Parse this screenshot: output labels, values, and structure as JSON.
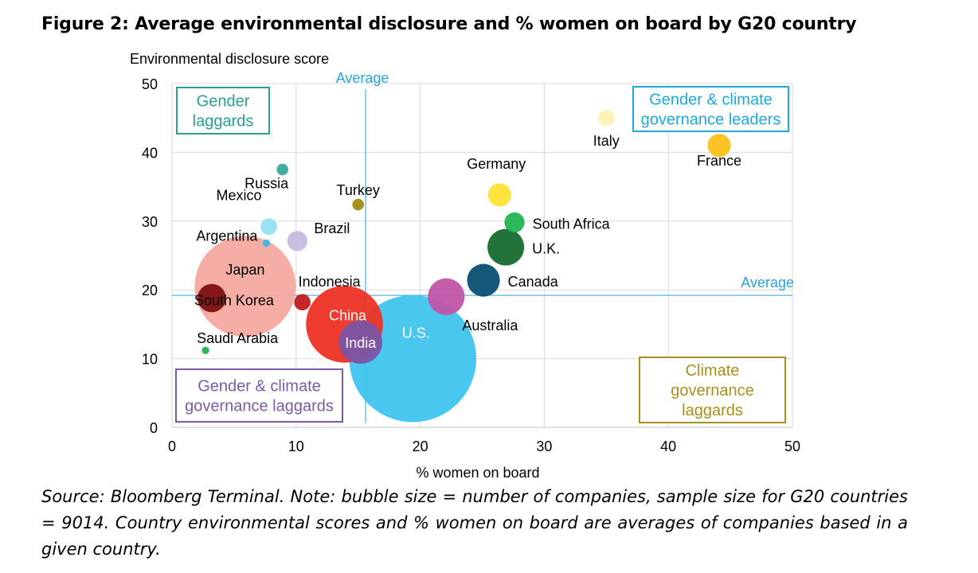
{
  "title": "Figure 2: Average environmental disclosure and % women on board by G20 country",
  "source": "Source: Bloomberg Terminal. Note: bubble size = number of companies, sample size for G20 countries = 9014. Country environmental scores and % women on board are averages of companies based in a given country.",
  "chart_data": {
    "type": "scatter",
    "subtype": "bubble",
    "xlabel": "% women on board",
    "ylabel": "Environmental disclosure score",
    "xlim": [
      0,
      50
    ],
    "ylim": [
      0,
      50
    ],
    "xticks": [
      "0",
      "10",
      "20",
      "30",
      "40",
      "50"
    ],
    "yticks": [
      "0",
      "10",
      "20",
      "30",
      "40",
      "50"
    ],
    "grid": true,
    "reference_lines": [
      {
        "axis": "x",
        "value": 15.6,
        "label": "Average"
      },
      {
        "axis": "y",
        "value": 19.2,
        "label": "Average"
      }
    ],
    "quadrant_labels": [
      {
        "text": "Gender laggards",
        "lines": [
          "Gender",
          "laggards"
        ],
        "color": "#2e9e8e",
        "position": "top-left"
      },
      {
        "text": "Gender & climate governance leaders",
        "lines": [
          "Gender & climate",
          "governance leaders"
        ],
        "color": "#1fa9d9",
        "position": "top-right"
      },
      {
        "text": "Gender & climate governance laggards",
        "lines": [
          "Gender & climate",
          "governance laggards"
        ],
        "color": "#7b5aa6",
        "position": "bottom-left"
      },
      {
        "text": "Climate governance laggards",
        "lines": [
          "Climate",
          "governance",
          "laggards"
        ],
        "color": "#a8901e",
        "position": "bottom-right"
      }
    ],
    "points": [
      {
        "name": "Italy",
        "x": 35.0,
        "y": 45.0,
        "size": 1,
        "color": "#fff2b3",
        "label_pos": "below"
      },
      {
        "name": "France",
        "x": 44.1,
        "y": 41.0,
        "size": 2,
        "color": "#fcc21b",
        "label_pos": "below"
      },
      {
        "name": "Russia",
        "x": 8.9,
        "y": 37.5,
        "size": 0.5,
        "color": "#3aa99a",
        "label_pos": "below-left"
      },
      {
        "name": "Germany",
        "x": 26.4,
        "y": 33.8,
        "size": 2,
        "color": "#ffe135",
        "label_pos": "above-left"
      },
      {
        "name": "Turkey",
        "x": 15.0,
        "y": 32.4,
        "size": 0.5,
        "color": "#a08c10",
        "label_pos": "above"
      },
      {
        "name": "South Africa",
        "x": 27.6,
        "y": 29.8,
        "size": 1.5,
        "color": "#21b350",
        "label_pos": "right"
      },
      {
        "name": "Mexico",
        "x": 7.8,
        "y": 29.2,
        "size": 1,
        "color": "#93e0f5",
        "label_pos": "above-left"
      },
      {
        "name": "Argentina",
        "x": 7.6,
        "y": 26.8,
        "size": 0.2,
        "color": "#3fb6e6",
        "label_pos": "left"
      },
      {
        "name": "Brazil",
        "x": 10.1,
        "y": 27.1,
        "size": 1.5,
        "color": "#c8b8df",
        "label_pos": "above-right"
      },
      {
        "name": "U.K.",
        "x": 26.9,
        "y": 26.2,
        "size": 5,
        "color": "#156b2e",
        "label_pos": "right"
      },
      {
        "name": "Japan",
        "x": 5.9,
        "y": 20.5,
        "size": 38,
        "color": "#f4a9a1",
        "label_pos": "inside"
      },
      {
        "name": "Canada",
        "x": 25.1,
        "y": 21.4,
        "size": 4,
        "color": "#0a4f72",
        "label_pos": "right"
      },
      {
        "name": "Indonesia",
        "x": 10.5,
        "y": 18.2,
        "size": 1,
        "color": "#c01b1b",
        "label_pos": "above-right"
      },
      {
        "name": "Australia",
        "x": 22.1,
        "y": 19.0,
        "size": 5,
        "color": "#c155a6",
        "label_pos": "below-right"
      },
      {
        "name": "South Korea",
        "x": 3.2,
        "y": 18.8,
        "size": 3,
        "color": "#7d1010",
        "label_pos": "inside"
      },
      {
        "name": "China",
        "x": 13.9,
        "y": 15.0,
        "size": 22,
        "color": "#ed3325",
        "label_pos": "inside"
      },
      {
        "name": "India",
        "x": 15.2,
        "y": 12.4,
        "size": 7,
        "color": "#7b55a6",
        "label_pos": "inside"
      },
      {
        "name": "U.S.",
        "x": 19.4,
        "y": 10.0,
        "size": 60,
        "color": "#3fc4ee",
        "label_pos": "inside"
      },
      {
        "name": "Saudi Arabia",
        "x": 2.7,
        "y": 11.2,
        "size": 0.2,
        "color": "#21b350",
        "label_pos": "above-right"
      }
    ]
  }
}
